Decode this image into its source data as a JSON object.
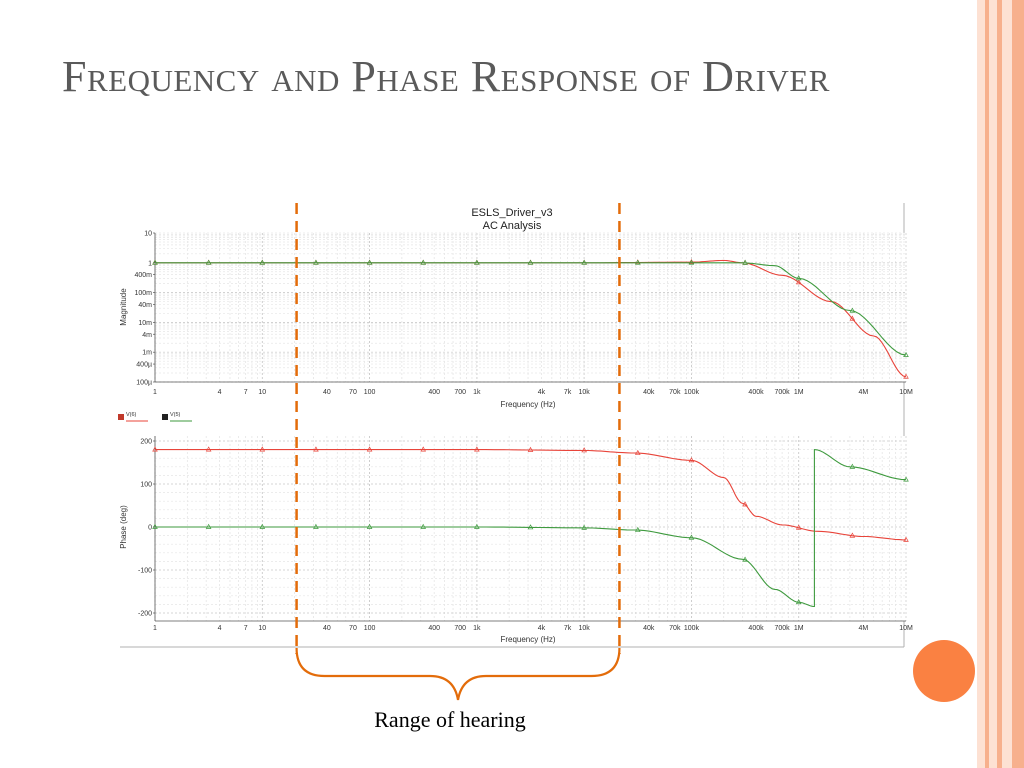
{
  "slide": {
    "title": "Frequency and Phase Response of Driver",
    "caption": "Range of hearing"
  },
  "theme": {
    "accent": "#e36c0a",
    "stripe_light": "#fbd5c3",
    "stripe_mid": "#f8b28f",
    "dot": "#fa8142",
    "series1": "#e8443a",
    "series2": "#3e9a3e"
  },
  "chart_data": [
    {
      "type": "line",
      "title": "ESLS_Driver_v3",
      "subtitle": "AC Analysis",
      "xlabel": "Frequency (Hz)",
      "ylabel": "Magnitude",
      "xscale": "log",
      "yscale": "log",
      "xlim": [
        1,
        10000000
      ],
      "ylim": [
        0.0001,
        10
      ],
      "grid": true,
      "x_ticks": [
        {
          "value": 1,
          "label": "1"
        },
        {
          "value": 4,
          "label": "4"
        },
        {
          "value": 7,
          "label": "7"
        },
        {
          "value": 10,
          "label": "10"
        },
        {
          "value": 40,
          "label": "40"
        },
        {
          "value": 70,
          "label": "70"
        },
        {
          "value": 100,
          "label": "100"
        },
        {
          "value": 400,
          "label": "400"
        },
        {
          "value": 700,
          "label": "700"
        },
        {
          "value": 1000,
          "label": "1k"
        },
        {
          "value": 4000,
          "label": "4k"
        },
        {
          "value": 7000,
          "label": "7k"
        },
        {
          "value": 10000,
          "label": "10k"
        },
        {
          "value": 40000,
          "label": "40k"
        },
        {
          "value": 70000,
          "label": "70k"
        },
        {
          "value": 100000,
          "label": "100k"
        },
        {
          "value": 400000,
          "label": "400k"
        },
        {
          "value": 700000,
          "label": "700k"
        },
        {
          "value": 1000000,
          "label": "1M"
        },
        {
          "value": 4000000,
          "label": "4M"
        },
        {
          "value": 10000000,
          "label": "10M"
        }
      ],
      "y_ticks": [
        {
          "value": 10,
          "label": "10"
        },
        {
          "value": 1,
          "label": "1"
        },
        {
          "value": 0.4,
          "label": "400m"
        },
        {
          "value": 0.1,
          "label": "100m"
        },
        {
          "value": 0.04,
          "label": "40m"
        },
        {
          "value": 0.01,
          "label": "10m"
        },
        {
          "value": 0.004,
          "label": "4m"
        },
        {
          "value": 0.001,
          "label": "1m"
        },
        {
          "value": 0.0004,
          "label": "400µ"
        },
        {
          "value": 0.0001,
          "label": "100µ"
        }
      ],
      "series": [
        {
          "color": "#e8443a",
          "x": [
            1,
            10000,
            100000,
            200000,
            300000,
            700000,
            2000000,
            5000000,
            10000000
          ],
          "y": [
            1,
            1,
            1.05,
            1.2,
            1.0,
            0.38,
            0.05,
            0.0035,
            0.00015
          ]
        },
        {
          "color": "#3e9a3e",
          "x": [
            1,
            10000,
            300000,
            600000,
            1000000,
            3000000,
            10000000
          ],
          "y": [
            1,
            1,
            1,
            0.8,
            0.3,
            0.025,
            0.0008
          ]
        }
      ]
    },
    {
      "type": "line",
      "xlabel": "Frequency (Hz)",
      "ylabel": "Phase (deg)",
      "xscale": "log",
      "xlim": [
        1,
        10000000
      ],
      "ylim": [
        -200,
        200
      ],
      "grid": true,
      "legend": {
        "position": "top-left",
        "entries": [
          "V(6)",
          "V(5)"
        ]
      },
      "x_ticks": [
        {
          "value": 1,
          "label": "1"
        },
        {
          "value": 4,
          "label": "4"
        },
        {
          "value": 7,
          "label": "7"
        },
        {
          "value": 10,
          "label": "10"
        },
        {
          "value": 40,
          "label": "40"
        },
        {
          "value": 70,
          "label": "70"
        },
        {
          "value": 100,
          "label": "100"
        },
        {
          "value": 400,
          "label": "400"
        },
        {
          "value": 700,
          "label": "700"
        },
        {
          "value": 1000,
          "label": "1k"
        },
        {
          "value": 4000,
          "label": "4k"
        },
        {
          "value": 7000,
          "label": "7k"
        },
        {
          "value": 10000,
          "label": "10k"
        },
        {
          "value": 40000,
          "label": "40k"
        },
        {
          "value": 70000,
          "label": "70k"
        },
        {
          "value": 100000,
          "label": "100k"
        },
        {
          "value": 400000,
          "label": "400k"
        },
        {
          "value": 700000,
          "label": "700k"
        },
        {
          "value": 1000000,
          "label": "1M"
        },
        {
          "value": 4000000,
          "label": "4M"
        },
        {
          "value": 10000000,
          "label": "10M"
        }
      ],
      "y_ticks": [
        {
          "value": 200,
          "label": "200"
        },
        {
          "value": 100,
          "label": "100"
        },
        {
          "value": 0,
          "label": "0"
        },
        {
          "value": -100,
          "label": "-100"
        },
        {
          "value": -200,
          "label": "-200"
        }
      ],
      "series": [
        {
          "name": "V(6)",
          "color": "#e8443a",
          "x": [
            1,
            1000,
            10000,
            30000,
            100000,
            200000,
            300000,
            400000,
            700000,
            1500000,
            4000000,
            10000000
          ],
          "y": [
            180,
            180,
            178,
            172,
            155,
            115,
            55,
            25,
            5,
            -10,
            -22,
            -30
          ]
        },
        {
          "name": "V(5)",
          "color": "#3e9a3e",
          "x": [
            1,
            1000,
            10000,
            30000,
            100000,
            300000,
            600000,
            1000000,
            1400000,
            1400000,
            3000000,
            10000000
          ],
          "y": [
            0,
            0,
            -2,
            -7,
            -25,
            -75,
            -145,
            -175,
            -185,
            180,
            140,
            110
          ]
        }
      ]
    }
  ],
  "annotation": {
    "range_start_hz": 20,
    "range_end_hz": 20000,
    "color": "#e36c0a"
  }
}
